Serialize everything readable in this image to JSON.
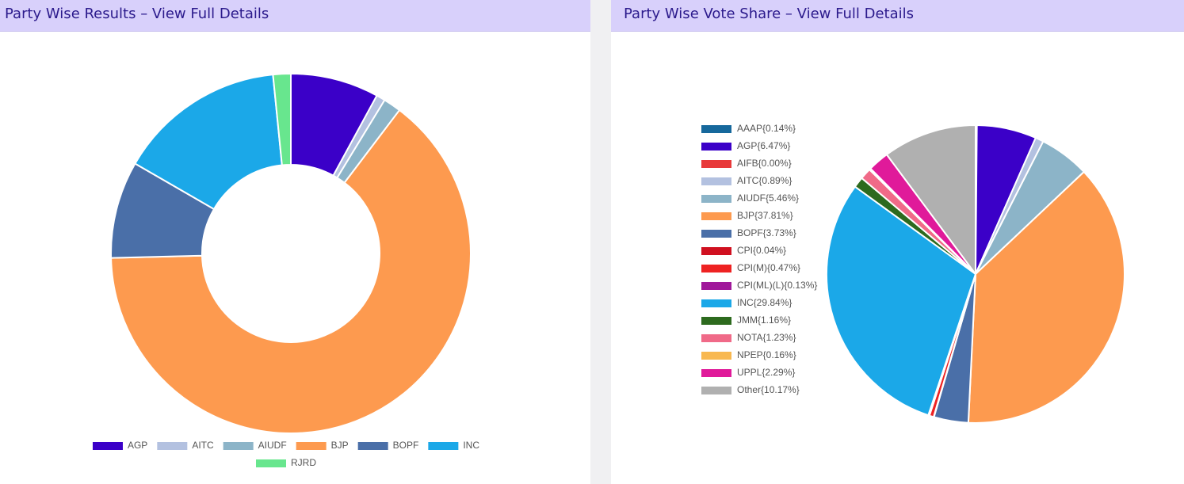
{
  "chart_data": [
    {
      "type": "doughnut",
      "title": "Party Wise Results – View Full Details",
      "categories": [
        "AGP",
        "AITC",
        "AIUDF",
        "BJP",
        "BOPF",
        "INC",
        "RJRD"
      ],
      "values": [
        10,
        1,
        2,
        81,
        11,
        19,
        2
      ],
      "colors": [
        "#3b00c8",
        "#b3c1e0",
        "#8cb4c8",
        "#fd9a4f",
        "#4a6fa8",
        "#1ba8e8",
        "#68e68e"
      ]
    },
    {
      "type": "pie",
      "title": "Party Wise Vote Share – View Full Details",
      "values": [
        0.14,
        6.47,
        0.0,
        0.89,
        5.46,
        37.81,
        3.73,
        0.04,
        0.47,
        0.13,
        29.84,
        1.16,
        1.23,
        0.16,
        2.29,
        10.17
      ],
      "value_labels": [
        "AAAP{0.14%}",
        "AGP{6.47%}",
        "AIFB{0.00%}",
        "AITC{0.89%}",
        "AIUDF{5.46%}",
        "BJP{37.81%}",
        "BOPF{3.73%}",
        "CPI{0.04%}",
        "CPI(M){0.47%}",
        "CPI(ML)(L){0.13%}",
        "INC{29.84%}",
        "JMM{1.16%}",
        "NOTA{1.23%}",
        "NPEP{0.16%}",
        "UPPL{2.29%}",
        "Other{10.17%}"
      ],
      "colors": [
        "#16689c",
        "#3b00c8",
        "#e8393a",
        "#b3c1e0",
        "#8cb4c8",
        "#fd9a4f",
        "#4a6fa8",
        "#d01020",
        "#ee2222",
        "#a0189a",
        "#1ba8e8",
        "#2d6a1e",
        "#f06a88",
        "#f8b850",
        "#e01a9a",
        "#b0b0b0"
      ]
    }
  ]
}
